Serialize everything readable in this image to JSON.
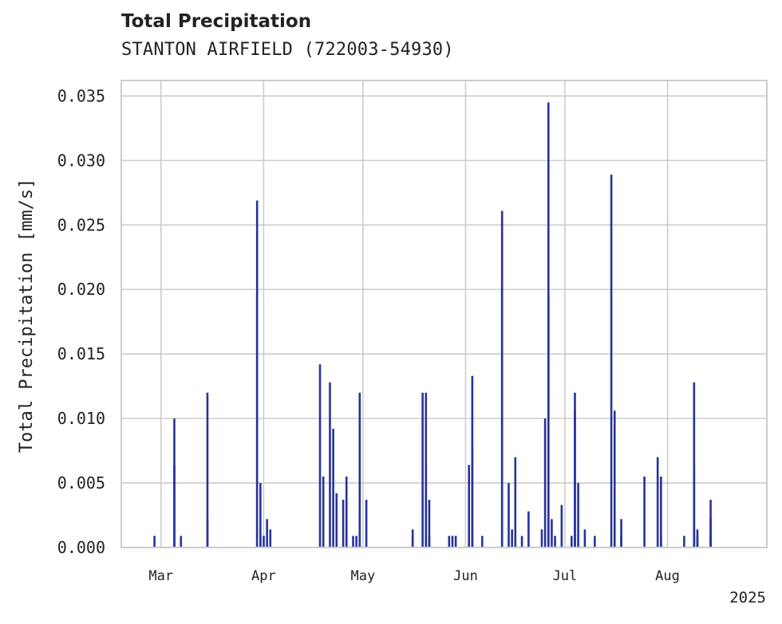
{
  "header": {
    "title": "Total Precipitation",
    "subtitle": "STANTON AIRFIELD (722003-54930)"
  },
  "chart_data": {
    "type": "bar",
    "title": "Total Precipitation",
    "subtitle": "STANTON AIRFIELD (722003-54930)",
    "ylabel": "Total Precipitation [mm/s]",
    "xlabel": "",
    "ylim": [
      0,
      0.0362
    ],
    "xlim": [
      "2025-02-17",
      "2025-08-31"
    ],
    "yticks": [
      "0.000",
      "0.005",
      "0.010",
      "0.015",
      "0.020",
      "0.025",
      "0.030",
      "0.035"
    ],
    "xticks": [
      {
        "date": "2025-03-01",
        "label": "Mar"
      },
      {
        "date": "2025-04-01",
        "label": "Apr"
      },
      {
        "date": "2025-05-01",
        "label": "May"
      },
      {
        "date": "2025-06-01",
        "label": "Jun"
      },
      {
        "date": "2025-07-01",
        "label": "Jul"
      },
      {
        "date": "2025-08-01",
        "label": "Aug"
      }
    ],
    "year_label": "2025",
    "grid": true,
    "bar_color": "#27339a",
    "points": [
      [
        "2025-02-27",
        0.0009
      ],
      [
        "2025-03-05",
        0.01
      ],
      [
        "2025-03-05",
        0.0064
      ],
      [
        "2025-03-07",
        0.0009
      ],
      [
        "2025-03-15",
        0.012
      ],
      [
        "2025-03-15",
        0.0022
      ],
      [
        "2025-03-30",
        0.0269
      ],
      [
        "2025-03-30",
        0.0197
      ],
      [
        "2025-03-31",
        0.005
      ],
      [
        "2025-03-31",
        0.0009
      ],
      [
        "2025-04-01",
        0.0009
      ],
      [
        "2025-04-02",
        0.0022
      ],
      [
        "2025-04-03",
        0.0014
      ],
      [
        "2025-04-18",
        0.0142
      ],
      [
        "2025-04-19",
        0.0055
      ],
      [
        "2025-04-21",
        0.0128
      ],
      [
        "2025-04-22",
        0.0092
      ],
      [
        "2025-04-23",
        0.0042
      ],
      [
        "2025-04-25",
        0.0037
      ],
      [
        "2025-04-26",
        0.0055
      ],
      [
        "2025-04-26",
        0.0014
      ],
      [
        "2025-04-28",
        0.0009
      ],
      [
        "2025-04-29",
        0.0009
      ],
      [
        "2025-04-30",
        0.012
      ],
      [
        "2025-05-02",
        0.0037
      ],
      [
        "2025-05-16",
        0.0009
      ],
      [
        "2025-05-16",
        0.0014
      ],
      [
        "2025-05-19",
        0.012
      ],
      [
        "2025-05-20",
        0.012
      ],
      [
        "2025-05-20",
        0.0064
      ],
      [
        "2025-05-21",
        0.0037
      ],
      [
        "2025-05-21",
        0.0009
      ],
      [
        "2025-05-27",
        0.0009
      ],
      [
        "2025-05-28",
        0.0009
      ],
      [
        "2025-05-29",
        0.0009
      ],
      [
        "2025-06-02",
        0.0064
      ],
      [
        "2025-06-03",
        0.0133
      ],
      [
        "2025-06-03",
        0.0078
      ],
      [
        "2025-06-03",
        0.0014
      ],
      [
        "2025-06-06",
        0.0009
      ],
      [
        "2025-06-12",
        0.0261
      ],
      [
        "2025-06-12",
        0.0206
      ],
      [
        "2025-06-14",
        0.005
      ],
      [
        "2025-06-15",
        0.0014
      ],
      [
        "2025-06-16",
        0.007
      ],
      [
        "2025-06-18",
        0.0009
      ],
      [
        "2025-06-20",
        0.0028
      ],
      [
        "2025-06-24",
        0.0014
      ],
      [
        "2025-06-25",
        0.01
      ],
      [
        "2025-06-26",
        0.0345
      ],
      [
        "2025-06-26",
        0.0197
      ],
      [
        "2025-06-27",
        0.0022
      ],
      [
        "2025-06-28",
        0.0009
      ],
      [
        "2025-06-30",
        0.0033
      ],
      [
        "2025-07-03",
        0.0009
      ],
      [
        "2025-07-04",
        0.012
      ],
      [
        "2025-07-04",
        0.0106
      ],
      [
        "2025-07-05",
        0.005
      ],
      [
        "2025-07-07",
        0.0014
      ],
      [
        "2025-07-10",
        0.0009
      ],
      [
        "2025-07-15",
        0.0289
      ],
      [
        "2025-07-16",
        0.0106
      ],
      [
        "2025-07-18",
        0.0022
      ],
      [
        "2025-07-18",
        0.0009
      ],
      [
        "2025-07-25",
        0.0055
      ],
      [
        "2025-07-29",
        0.007
      ],
      [
        "2025-07-30",
        0.0055
      ],
      [
        "2025-07-30",
        0.0009
      ],
      [
        "2025-08-06",
        0.0009
      ],
      [
        "2025-08-09",
        0.0128
      ],
      [
        "2025-08-09",
        0.0064
      ],
      [
        "2025-08-10",
        0.0014
      ],
      [
        "2025-08-10",
        0.0009
      ],
      [
        "2025-08-14",
        0.0022
      ],
      [
        "2025-08-14",
        0.0037
      ],
      [
        "2025-08-14",
        0.0009
      ]
    ]
  }
}
